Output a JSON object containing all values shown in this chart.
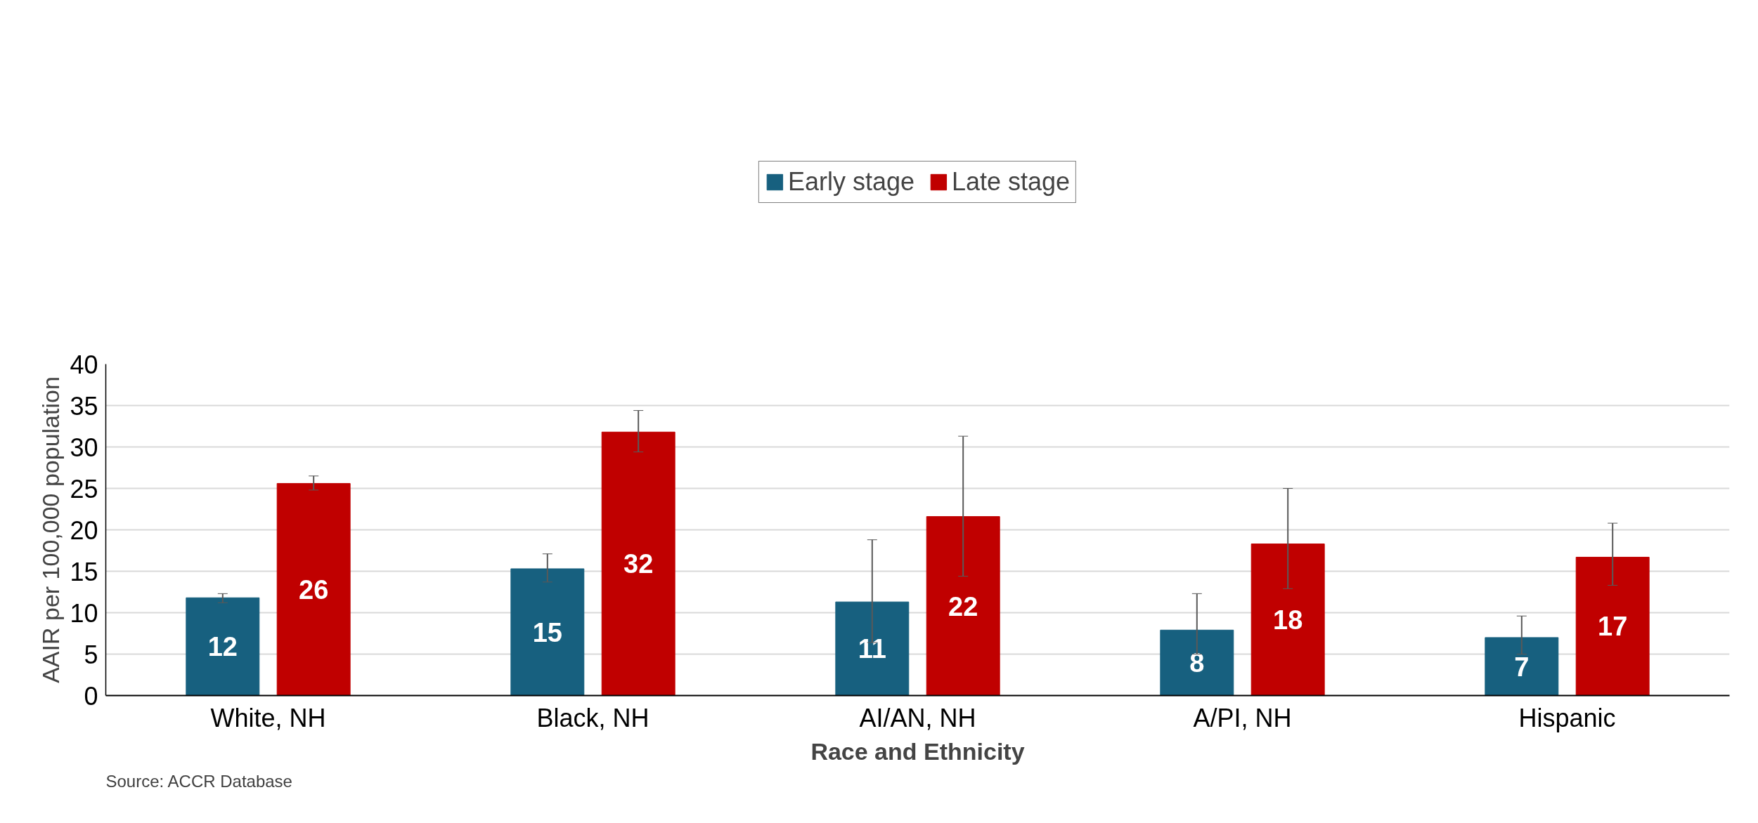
{
  "chart_data": {
    "type": "bar",
    "xlabel": "Race and Ethnicity",
    "ylabel": "AAIR per 100,000 population",
    "categories": [
      "White, NH",
      "Black, NH",
      "AI/AN, NH",
      "A/PI, NH",
      "Hispanic"
    ],
    "series": [
      {
        "name": "Early stage",
        "color": "#17607f",
        "values": [
          11.8,
          15.3,
          11.3,
          7.9,
          7.0
        ],
        "errors": [
          [
            11.2,
            12.3
          ],
          [
            13.7,
            17.1
          ],
          [
            6.4,
            18.8
          ],
          [
            5.0,
            12.3
          ],
          [
            5.0,
            9.6
          ]
        ],
        "value_labels": [
          "12",
          "15",
          "11",
          "8",
          "7"
        ]
      },
      {
        "name": "Late stage",
        "color": "#c00000",
        "values": [
          25.6,
          31.8,
          21.6,
          18.3,
          16.7
        ],
        "errors": [
          [
            24.8,
            26.5
          ],
          [
            29.4,
            34.4
          ],
          [
            14.4,
            31.3
          ],
          [
            12.9,
            25.0
          ],
          [
            13.3,
            20.8
          ]
        ],
        "value_labels": [
          "26",
          "32",
          "22",
          "18",
          "17"
        ]
      }
    ],
    "ylim": [
      0,
      40
    ],
    "yticks": [
      0,
      5,
      10,
      15,
      20,
      25,
      30,
      35,
      40
    ],
    "grid": "y",
    "legend": "top",
    "annotations": [
      "Source: ACCR Database"
    ]
  }
}
